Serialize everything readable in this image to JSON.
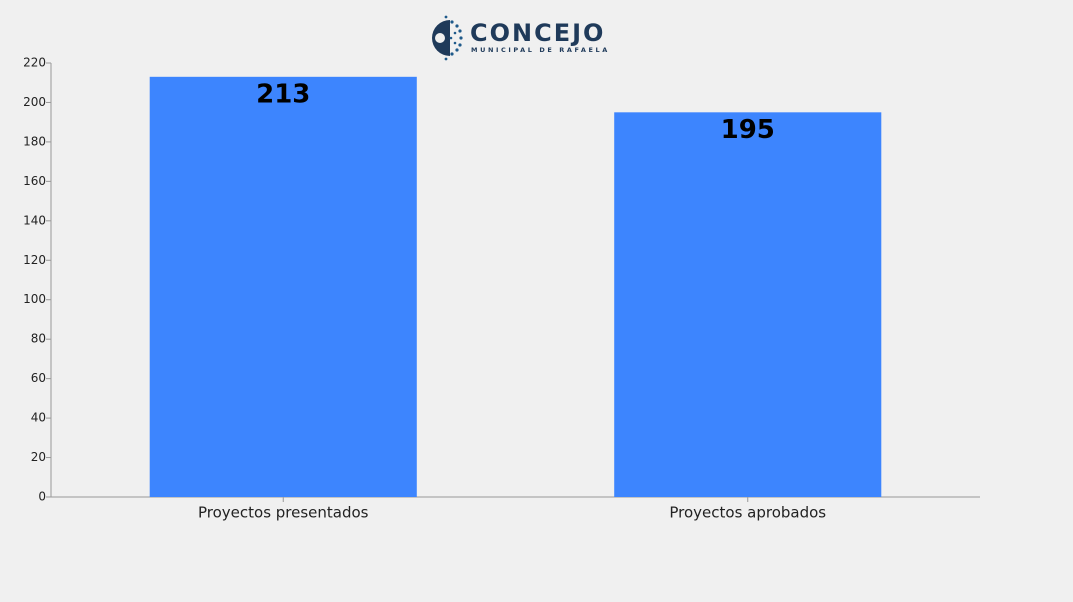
{
  "header": {
    "logo_title": "CONCEJO",
    "logo_subtitle": "MUNICIPAL DE RAFAELA"
  },
  "chart_data": {
    "type": "bar",
    "categories": [
      "Proyectos presentados",
      "Proyectos aprobados"
    ],
    "values": [
      213,
      195
    ],
    "color": "#3d85fe",
    "ylim": [
      0,
      220
    ],
    "yticks": [
      0,
      20,
      40,
      60,
      80,
      100,
      120,
      140,
      160,
      180,
      200,
      220
    ],
    "grid": false
  }
}
